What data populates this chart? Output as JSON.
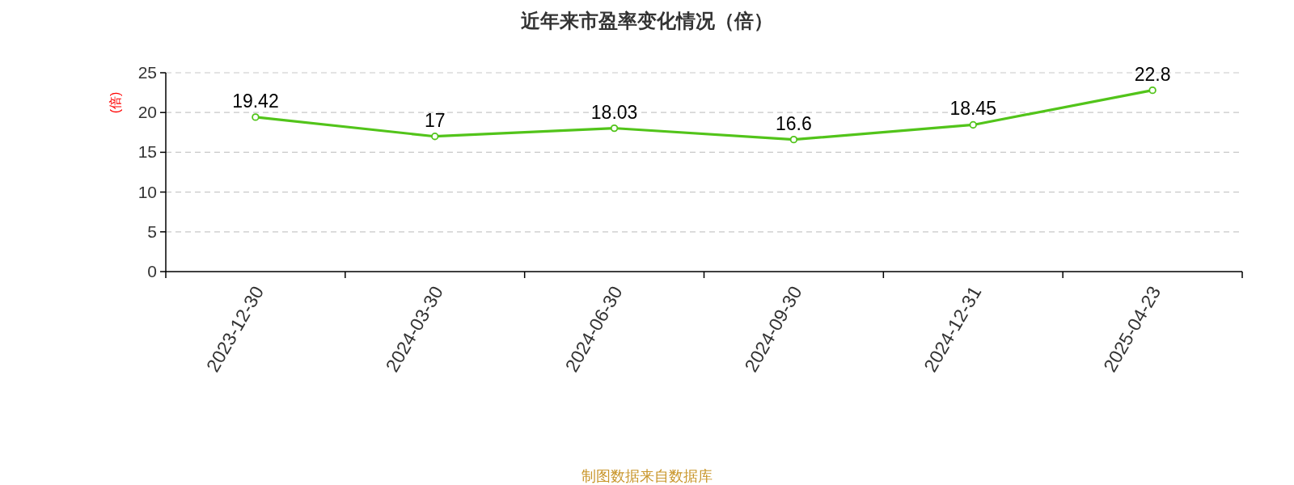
{
  "chart_data": {
    "type": "line",
    "title": "近年来市盈率变化情况（倍）",
    "ylabel": "(倍)",
    "categories": [
      "2023-12-30",
      "2024-03-30",
      "2024-06-30",
      "2024-09-30",
      "2024-12-31",
      "2025-04-23"
    ],
    "values": [
      19.42,
      17,
      18.03,
      16.6,
      18.45,
      22.8
    ],
    "color": "#52c41a",
    "ylim": [
      0,
      25
    ],
    "yticks": [
      0,
      5,
      10,
      15,
      20,
      25
    ],
    "grid": "y",
    "marker": "circle",
    "line_style": "solid",
    "data_labels": true,
    "annotations": [
      "制图数据来自数据库"
    ]
  }
}
